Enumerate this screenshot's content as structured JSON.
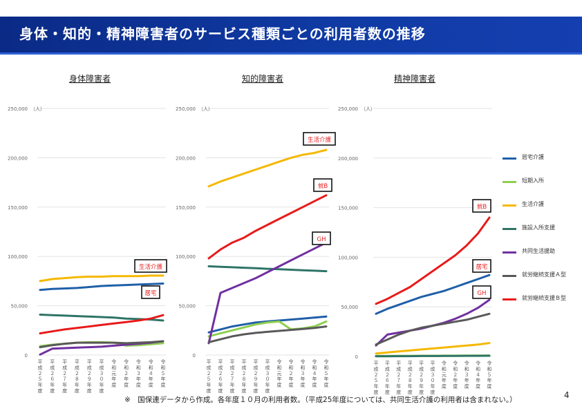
{
  "page": {
    "title": "身体・知的・精神障害者のサービス種類ごとの利用者数の推移",
    "footnote": "※　国保連データから作成。各年度１０月の利用者数。（平成25年度については、共同生活介護の利用者は含まれない。）",
    "page_number": "4"
  },
  "legend": [
    {
      "name": "居宅介護",
      "color": "#1f5fa8"
    },
    {
      "name": "短期入所",
      "color": "#8fcf4f"
    },
    {
      "name": "生活介護",
      "color": "#f5b800"
    },
    {
      "name": "施設入所支援",
      "color": "#2e7466"
    },
    {
      "name": "共同生活援助",
      "color": "#7030a0"
    },
    {
      "name": "就労継続支援Ａ型",
      "color": "#595959"
    },
    {
      "name": "就労継続支援Ｂ型",
      "color": "#e81a1a"
    }
  ],
  "chart_data": [
    {
      "type": "line",
      "title": "身体障害者",
      "unit": "（人）",
      "ylim": [
        0,
        250000
      ],
      "yticks": [
        "0",
        "50,000",
        "100,000",
        "150,000",
        "200,000",
        "250,000"
      ],
      "categories": [
        "平成２５年度",
        "平成２６年度",
        "平成２７年度",
        "平成２８年度",
        "平成２９年度",
        "平成３０年度",
        "令和元年度",
        "令和２年度",
        "令和３年度",
        "令和４年度",
        "令和５年度"
      ],
      "series": [
        {
          "name": "居宅介護",
          "values": [
            66000,
            67000,
            67500,
            68000,
            69000,
            70000,
            70500,
            71000,
            71500,
            72000,
            72500
          ]
        },
        {
          "name": "短期入所",
          "values": [
            9000,
            10500,
            11500,
            12500,
            13000,
            13000,
            12500,
            9500,
            10000,
            11000,
            12000
          ]
        },
        {
          "name": "生活介護",
          "values": [
            75000,
            77000,
            78000,
            79000,
            79500,
            79500,
            80000,
            80000,
            80000,
            80500,
            80500
          ]
        },
        {
          "name": "施設入所支援",
          "values": [
            41000,
            40500,
            40000,
            39500,
            39000,
            38500,
            38000,
            37000,
            36500,
            36000,
            35000
          ]
        },
        {
          "name": "共同生活援助",
          "values": [
            500,
            6500,
            7000,
            7500,
            8000,
            8500,
            9500,
            10500,
            11500,
            12500,
            14000
          ]
        },
        {
          "name": "就労継続支援Ａ型",
          "values": [
            8000,
            10000,
            11500,
            12500,
            12500,
            12500,
            12500,
            12000,
            12500,
            13000,
            14000
          ]
        },
        {
          "name": "就労継続支援Ｂ型",
          "values": [
            22000,
            24000,
            26000,
            27500,
            29000,
            30500,
            32000,
            33500,
            35000,
            37000,
            40500
          ]
        }
      ],
      "annotations": [
        {
          "text": "生活介護",
          "series": "生活介護",
          "color": "#e81a1a"
        },
        {
          "text": "居宅",
          "series": "居宅介護",
          "color": "#e81a1a"
        }
      ]
    },
    {
      "type": "line",
      "title": "知的障害者",
      "unit": "（人）",
      "ylim": [
        0,
        250000
      ],
      "yticks": [
        "0",
        "50,000",
        "100,000",
        "150,000",
        "200,000",
        "250,000"
      ],
      "categories": [
        "平成２５年度",
        "平成２６年度",
        "平成２７年度",
        "平成２８年度",
        "平成２９年度",
        "平成３０年度",
        "令和元年度",
        "令和２年度",
        "令和３年度",
        "令和４年度",
        "令和５年度"
      ],
      "series": [
        {
          "name": "居宅介護",
          "values": [
            23000,
            26000,
            29000,
            31000,
            33000,
            34000,
            35000,
            36000,
            37000,
            38000,
            39000
          ]
        },
        {
          "name": "短期入所",
          "values": [
            19000,
            22000,
            25000,
            28000,
            31000,
            33000,
            34000,
            26000,
            27000,
            29000,
            34000
          ]
        },
        {
          "name": "生活介護",
          "values": [
            171000,
            176000,
            180000,
            184000,
            188000,
            192000,
            196000,
            200000,
            203000,
            205000,
            208000
          ]
        },
        {
          "name": "施設入所支援",
          "values": [
            90000,
            89500,
            89000,
            88500,
            88000,
            87500,
            87000,
            86500,
            86000,
            85500,
            85000
          ]
        },
        {
          "name": "共同生活援助",
          "values": [
            12000,
            63000,
            68000,
            73000,
            78000,
            84000,
            90000,
            96000,
            102000,
            108000,
            114000
          ]
        },
        {
          "name": "就労継続支援Ａ型",
          "values": [
            13000,
            16000,
            19000,
            21000,
            22500,
            23500,
            24500,
            25500,
            26500,
            27500,
            29000
          ]
        },
        {
          "name": "就労継続支援Ｂ型",
          "values": [
            98000,
            107000,
            114000,
            119000,
            126000,
            132000,
            138000,
            144000,
            150000,
            156000,
            162000
          ]
        }
      ],
      "annotations": [
        {
          "text": "生活介護",
          "series": "生活介護",
          "color": "#e81a1a"
        },
        {
          "text": "就B",
          "series": "就労継続支援Ｂ型",
          "color": "#e81a1a"
        },
        {
          "text": "GH",
          "series": "共同生活援助",
          "color": "#e81a1a"
        }
      ]
    },
    {
      "type": "line",
      "title": "精神障害者",
      "unit": "（人）",
      "ylim": [
        0,
        250000
      ],
      "yticks": [
        "0",
        "50,000",
        "100,000",
        "150,000",
        "200,000",
        "250,000"
      ],
      "categories": [
        "平成２５年度",
        "平成２６年度",
        "平成２７年度",
        "平成２８年度",
        "平成２９年度",
        "平成３０年度",
        "令和元年度",
        "令和２年度",
        "令和３年度",
        "令和４年度",
        "令和５年度"
      ],
      "series": [
        {
          "name": "居宅介護",
          "values": [
            43000,
            48000,
            52000,
            56000,
            60000,
            63000,
            66000,
            70000,
            74000,
            78000,
            82000
          ]
        },
        {
          "name": "短期入所",
          "values": [
            500,
            500,
            600,
            600,
            700,
            700,
            800,
            800,
            900,
            900,
            1000
          ]
        },
        {
          "name": "生活介護",
          "values": [
            3000,
            4000,
            5000,
            6000,
            7000,
            8000,
            9000,
            10000,
            11000,
            12000,
            13500
          ]
        },
        {
          "name": "施設入所支援",
          "values": [
            200,
            200,
            300,
            300,
            400,
            400,
            500,
            500,
            600,
            600,
            700
          ]
        },
        {
          "name": "共同生活援助",
          "values": [
            11000,
            22000,
            24000,
            26000,
            28000,
            31000,
            34000,
            38000,
            43000,
            49000,
            57000
          ]
        },
        {
          "name": "就労継続支援Ａ型",
          "values": [
            12000,
            17000,
            22000,
            26000,
            29000,
            31000,
            33000,
            35000,
            37000,
            40000,
            43000
          ]
        },
        {
          "name": "就労継続支援Ｂ型",
          "values": [
            53000,
            58000,
            64000,
            70000,
            78000,
            86000,
            94000,
            102000,
            112000,
            124000,
            140000
          ]
        }
      ],
      "annotations": [
        {
          "text": "就B",
          "series": "就労継続支援Ｂ型",
          "color": "#e81a1a"
        },
        {
          "text": "居宅",
          "series": "居宅介護",
          "color": "#e81a1a"
        },
        {
          "text": "GH",
          "series": "共同生活援助",
          "color": "#e81a1a"
        }
      ]
    }
  ]
}
